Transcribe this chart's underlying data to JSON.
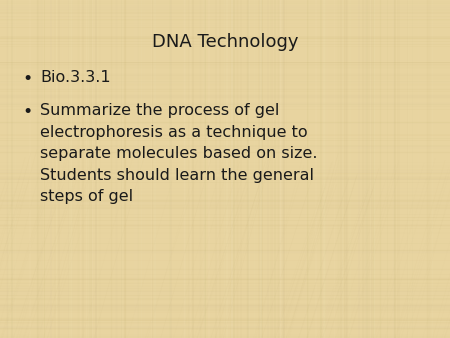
{
  "title": "DNA Technology",
  "bullet1": "Bio.3.3.1",
  "bullet2": "Summarize the process of gel\nelectrophoresis as a technique to\nseparate molecules based on size.\nStudents should learn the general\nsteps of gel",
  "background_color": "#E8D4A0",
  "bg_light": "#F0DFB0",
  "bg_dark": "#C8B878",
  "text_color": "#1a1a1a",
  "title_fontsize": 13,
  "body_fontsize": 11.5,
  "figsize": [
    4.5,
    3.38
  ],
  "dpi": 100
}
